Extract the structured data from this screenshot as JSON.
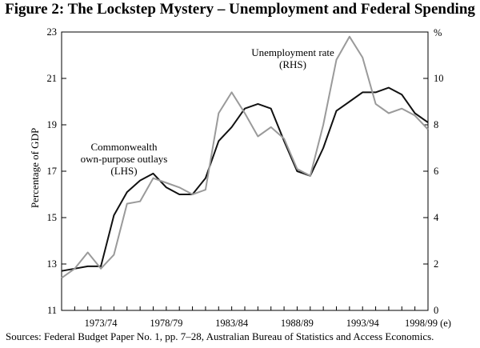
{
  "title": "Figure 2: The Lockstep Mystery – Unemployment and Federal Spending",
  "source": "Sources:  Federal Budget Paper No. 1, pp. 7–28, Australian Bureau of Statistics and Access Economics.",
  "chart_data": {
    "type": "line",
    "x": [
      1970,
      1971,
      1972,
      1973,
      1974,
      1975,
      1976,
      1977,
      1978,
      1979,
      1980,
      1981,
      1982,
      1983,
      1984,
      1985,
      1986,
      1987,
      1988,
      1989,
      1990,
      1991,
      1992,
      1993,
      1994,
      1995,
      1996,
      1997,
      1998
    ],
    "x_tick_labels": [
      "1973/74",
      "1978/79",
      "1983/84",
      "1988/89",
      "1993/94",
      "1998/99 (e)"
    ],
    "x_tick_label_years": [
      1973,
      1978,
      1983,
      1988,
      1993,
      1998
    ],
    "y_left": {
      "label": "Percentage of GDP",
      "range": [
        11,
        23
      ],
      "ticks": [
        "11",
        "13",
        "15",
        "17",
        "19",
        "21",
        "23"
      ]
    },
    "y_right": {
      "unit_label": "%",
      "range": [
        0,
        12
      ],
      "ticks": [
        "0",
        "2",
        "4",
        "6",
        "8",
        "10"
      ]
    },
    "series": [
      {
        "name": "Commonwealth own-purpose outlays (LHS)",
        "annotation_lines": [
          "Commonwealth",
          "own-purpose outlays",
          "(LHS)"
        ],
        "axis": "left",
        "color": "#111111",
        "values": [
          12.7,
          12.8,
          12.9,
          12.9,
          15.1,
          16.1,
          16.6,
          16.9,
          16.3,
          16.0,
          16.0,
          16.7,
          18.3,
          18.9,
          19.7,
          19.9,
          19.7,
          18.3,
          17.0,
          16.8,
          18.0,
          19.6,
          20.0,
          20.4,
          20.4,
          20.6,
          20.3,
          19.5,
          19.1
        ]
      },
      {
        "name": "Unemployment rate (RHS)",
        "annotation_lines": [
          "Unemployment rate",
          "(RHS)"
        ],
        "axis": "right",
        "color": "#9a9a9a",
        "values": [
          1.4,
          1.8,
          2.5,
          1.8,
          2.4,
          4.6,
          4.7,
          5.7,
          5.5,
          5.3,
          5.0,
          5.2,
          8.5,
          9.4,
          8.5,
          7.5,
          7.9,
          7.4,
          6.1,
          5.8,
          8.0,
          10.8,
          11.8,
          10.9,
          8.9,
          8.5,
          8.7,
          8.4,
          7.8
        ]
      }
    ],
    "grid": false
  }
}
